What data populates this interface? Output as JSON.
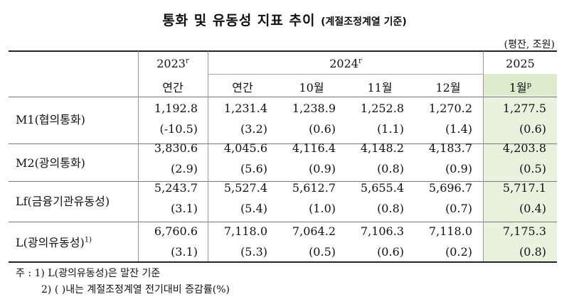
{
  "title": "통화 및 유동성 지표 추이",
  "subtitle": "(계절조정계열 기준)",
  "unit": "(평잔, 조원)",
  "headers": {
    "y2023": "2023",
    "y2023_sup": "r",
    "y2024": "2024",
    "y2024_sup": "r",
    "y2025": "2025",
    "sub": [
      "연간",
      "연간",
      "10월",
      "11월",
      "12월",
      "1월"
    ],
    "sub_last_sup": "p"
  },
  "rows": [
    {
      "label": "M1(협의통화)",
      "label_sup": "",
      "values": [
        "1,192.8",
        "1,231.4",
        "1,238.9",
        "1,252.8",
        "1,270.2",
        "1,277.5"
      ],
      "changes": [
        "(-10.5)",
        "(3.2)",
        "(0.6)",
        "(1.1)",
        "(1.4)",
        "(0.6)"
      ]
    },
    {
      "label": "M2(광의통화)",
      "label_sup": "",
      "values": [
        "3,830.6",
        "4,045.6",
        "4,116.4",
        "4,148.2",
        "4,183.7",
        "4,203.8"
      ],
      "changes": [
        "(2.9)",
        "(5.6)",
        "(0.9)",
        "(0.8)",
        "(0.9)",
        "(0.5)"
      ]
    },
    {
      "label": "Lf(금융기관유동성)",
      "label_sup": "",
      "values": [
        "5,243.7",
        "5,527.4",
        "5,612.7",
        "5,655.4",
        "5,696.7",
        "5,717.1"
      ],
      "changes": [
        "(3.1)",
        "(5.4)",
        "(1.0)",
        "(0.8)",
        "(0.7)",
        "(0.4)"
      ]
    },
    {
      "label": "L(광의유동성)",
      "label_sup": "1)",
      "values": [
        "6,760.6",
        "7,118.0",
        "7,064.2",
        "7,106.3",
        "7,118.0",
        "7,175.3"
      ],
      "changes": [
        "(3.1)",
        "(5.3)",
        "(0.5)",
        "(0.6)",
        "(0.2)",
        "(0.8)"
      ]
    }
  ],
  "notes": [
    "주 : 1) L(광의유동성)은 말잔 기준",
    "2) (    )내는 계절조정계열 전기대비 증감률(%)"
  ]
}
